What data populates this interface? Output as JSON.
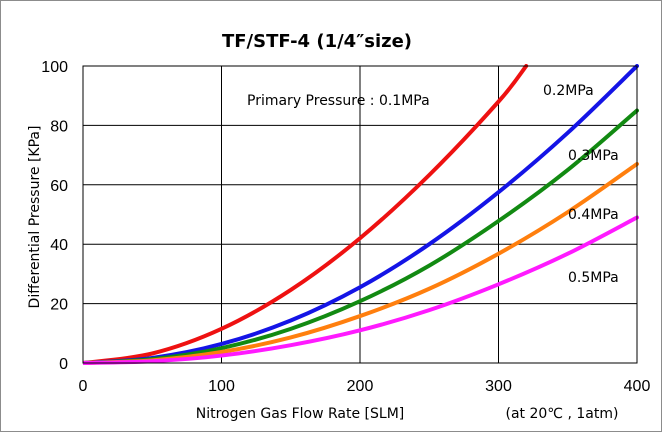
{
  "chart_data": {
    "type": "line",
    "title": "TF/STF-4 (1/4″size)",
    "xlabel": "Nitrogen Gas Flow Rate [SLM]",
    "xlabel_note": "(at 20℃ , 1atm)",
    "ylabel": "Differential Pressure [KPa]",
    "xlim": [
      0,
      400
    ],
    "ylim": [
      0,
      100
    ],
    "x_ticks": [
      "0",
      "100",
      "200",
      "300",
      "400"
    ],
    "y_ticks": [
      "0",
      "20",
      "40",
      "60",
      "80",
      "100"
    ],
    "grid": true,
    "annotation": "Primary Pressure : 0.1MPa",
    "series": [
      {
        "name": "0.1MPa",
        "color": "#ee1111",
        "x": [
          0,
          50,
          100,
          150,
          200,
          250,
          300,
          320
        ],
        "y": [
          0,
          3.2,
          11.5,
          24.6,
          42.0,
          63.3,
          88.0,
          100
        ]
      },
      {
        "name": "0.2MPa",
        "color": "#1414e6",
        "x": [
          0,
          50,
          100,
          150,
          200,
          250,
          300,
          350,
          400
        ],
        "y": [
          0,
          1.7,
          6.4,
          14.3,
          25.5,
          40.0,
          57.5,
          77.5,
          100
        ]
      },
      {
        "name": "0.3MPa",
        "color": "#128a12",
        "x": [
          0,
          50,
          100,
          150,
          200,
          250,
          300,
          350,
          400
        ],
        "y": [
          0,
          1.3,
          5.0,
          11.5,
          20.8,
          32.8,
          47.8,
          65.0,
          85.0
        ]
      },
      {
        "name": "0.4MPa",
        "color": "#ff7f0e",
        "x": [
          0,
          50,
          100,
          150,
          200,
          250,
          300,
          350,
          400
        ],
        "y": [
          0,
          0.9,
          3.7,
          8.6,
          15.8,
          25.0,
          36.8,
          50.8,
          67.0
        ]
      },
      {
        "name": "0.5MPa",
        "color": "#ff1aff",
        "x": [
          0,
          50,
          100,
          150,
          200,
          250,
          300,
          350,
          400
        ],
        "y": [
          0,
          0.6,
          2.5,
          6.0,
          11.0,
          17.8,
          26.5,
          36.8,
          49.0
        ]
      }
    ]
  }
}
